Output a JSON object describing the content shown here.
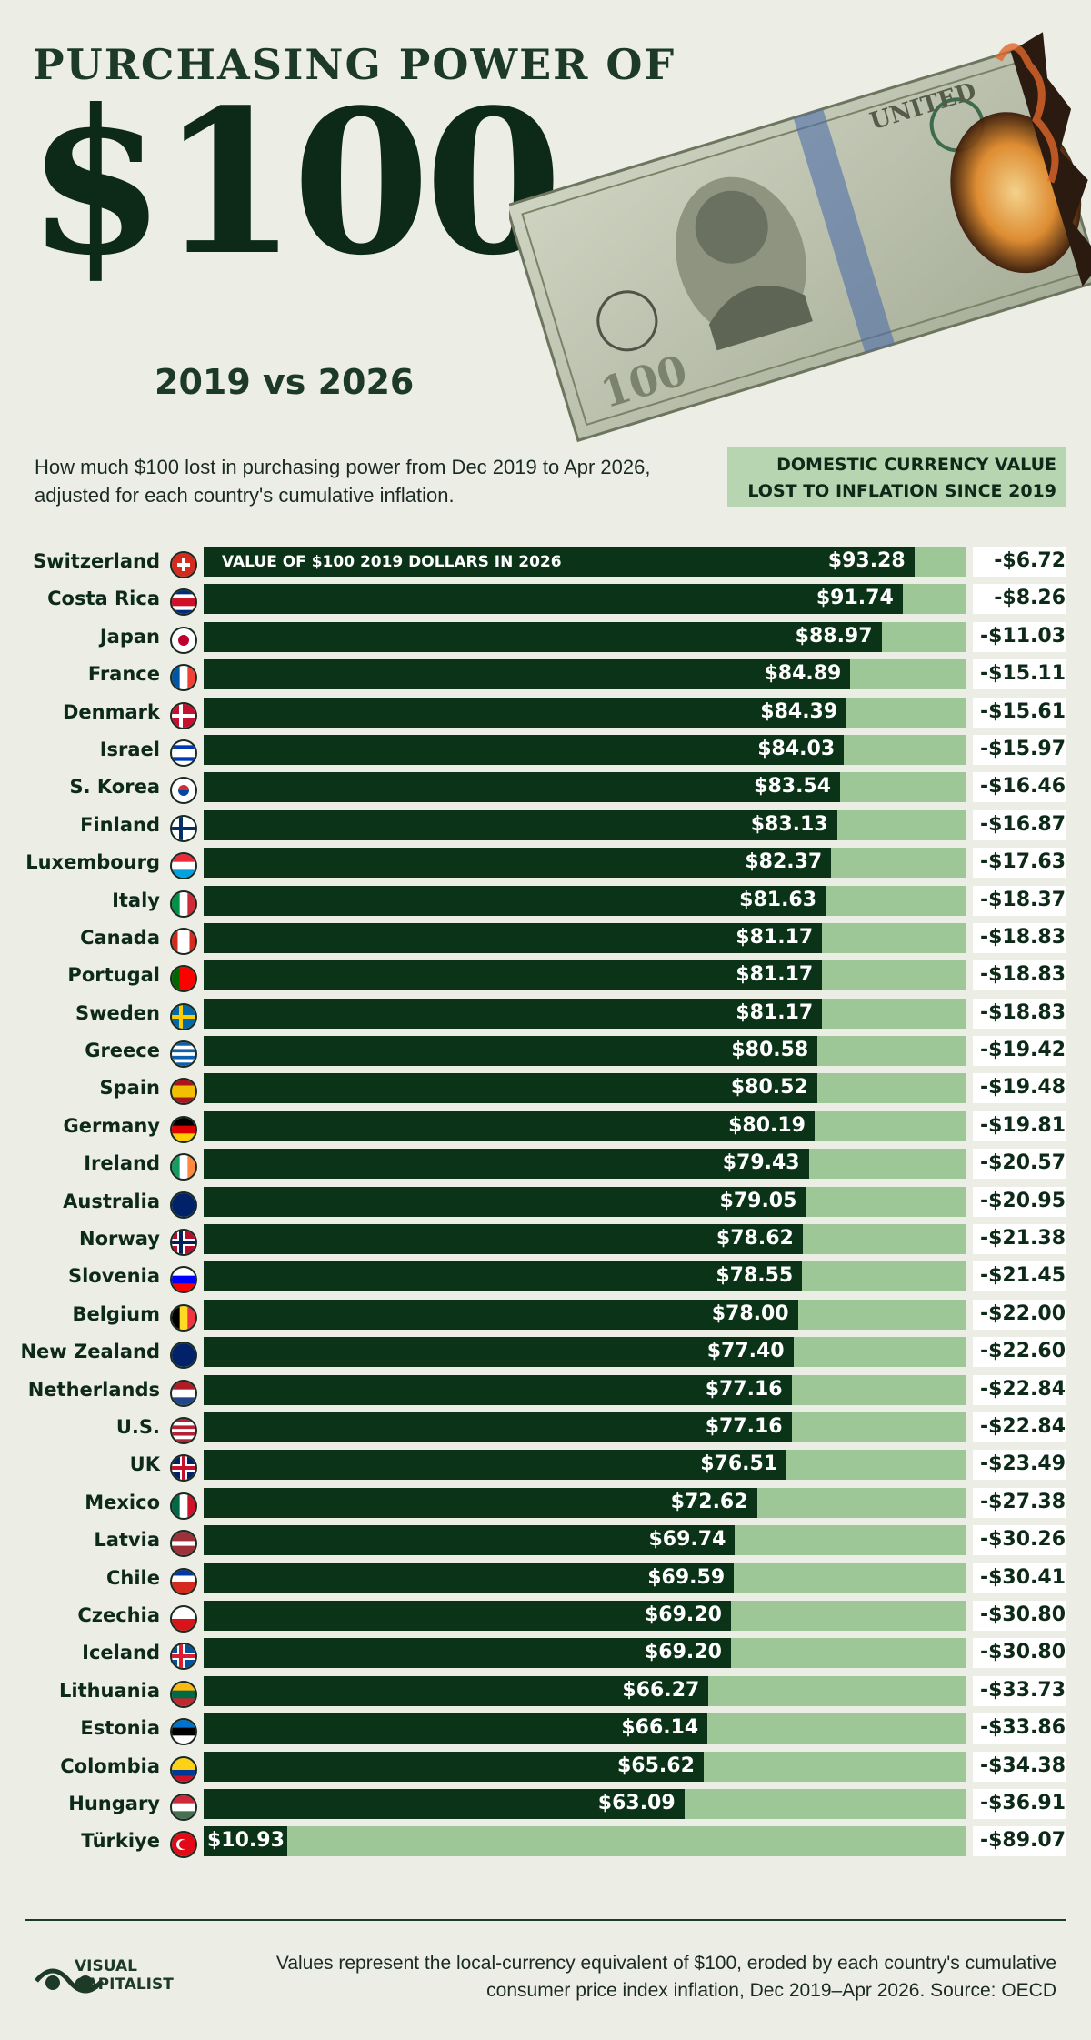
{
  "header": {
    "title_top": "Purchasing Power of",
    "title_big": "$100",
    "subtitle": "2019 vs 2026",
    "intro": "How much $100 lost in purchasing power from Dec 2019 to Apr 2026, adjusted for each country's cumulative inflation.",
    "right_header": "Domestic currency value lost to inflation since 2019",
    "bar_label": "Value of $100 2019 dollars in 2026"
  },
  "chart_data": {
    "type": "bar",
    "orientation": "horizontal",
    "xlim": [
      0,
      100
    ],
    "colors": {
      "value": "#0a3317",
      "remaining": "#9ec798",
      "loss_box": "#ffffff"
    },
    "rows": [
      {
        "country": "Switzerland",
        "flag": "switzerland-flag-icon",
        "value": 93.28,
        "value_label": "$93.28",
        "loss": "-$6.72"
      },
      {
        "country": "Costa Rica",
        "flag": "costa-rica-flag-icon",
        "value": 91.74,
        "value_label": "$91.74",
        "loss": "-$8.26"
      },
      {
        "country": "Japan",
        "flag": "japan-flag-icon",
        "value": 88.97,
        "value_label": "$88.97",
        "loss": "-$11.03"
      },
      {
        "country": "France",
        "flag": "france-flag-icon",
        "value": 84.89,
        "value_label": "$84.89",
        "loss": "-$15.11"
      },
      {
        "country": "Denmark",
        "flag": "denmark-flag-icon",
        "value": 84.39,
        "value_label": "$84.39",
        "loss": "-$15.61"
      },
      {
        "country": "Israel",
        "flag": "israel-flag-icon",
        "value": 84.03,
        "value_label": "$84.03",
        "loss": "-$15.97"
      },
      {
        "country": "S. Korea",
        "flag": "south-korea-flag-icon",
        "value": 83.54,
        "value_label": "$83.54",
        "loss": "-$16.46"
      },
      {
        "country": "Finland",
        "flag": "finland-flag-icon",
        "value": 83.13,
        "value_label": "$83.13",
        "loss": "-$16.87"
      },
      {
        "country": "Luxembourg",
        "flag": "luxembourg-flag-icon",
        "value": 82.37,
        "value_label": "$82.37",
        "loss": "-$17.63"
      },
      {
        "country": "Italy",
        "flag": "italy-flag-icon",
        "value": 81.63,
        "value_label": "$81.63",
        "loss": "-$18.37"
      },
      {
        "country": "Canada",
        "flag": "canada-flag-icon",
        "value": 81.17,
        "value_label": "$81.17",
        "loss": "-$18.83"
      },
      {
        "country": "Portugal",
        "flag": "portugal-flag-icon",
        "value": 81.17,
        "value_label": "$81.17",
        "loss": "-$18.83"
      },
      {
        "country": "Sweden",
        "flag": "sweden-flag-icon",
        "value": 81.17,
        "value_label": "$81.17",
        "loss": "-$18.83"
      },
      {
        "country": "Greece",
        "flag": "greece-flag-icon",
        "value": 80.58,
        "value_label": "$80.58",
        "loss": "-$19.42"
      },
      {
        "country": "Spain",
        "flag": "spain-flag-icon",
        "value": 80.52,
        "value_label": "$80.52",
        "loss": "-$19.48"
      },
      {
        "country": "Germany",
        "flag": "germany-flag-icon",
        "value": 80.19,
        "value_label": "$80.19",
        "loss": "-$19.81"
      },
      {
        "country": "Ireland",
        "flag": "ireland-flag-icon",
        "value": 79.43,
        "value_label": "$79.43",
        "loss": "-$20.57"
      },
      {
        "country": "Australia",
        "flag": "australia-flag-icon",
        "value": 79.05,
        "value_label": "$79.05",
        "loss": "-$20.95"
      },
      {
        "country": "Norway",
        "flag": "norway-flag-icon",
        "value": 78.62,
        "value_label": "$78.62",
        "loss": "-$21.38"
      },
      {
        "country": "Slovenia",
        "flag": "slovenia-flag-icon",
        "value": 78.55,
        "value_label": "$78.55",
        "loss": "-$21.45"
      },
      {
        "country": "Belgium",
        "flag": "belgium-flag-icon",
        "value": 78.0,
        "value_label": "$78.00",
        "loss": "-$22.00"
      },
      {
        "country": "New Zealand",
        "flag": "new-zealand-flag-icon",
        "value": 77.4,
        "value_label": "$77.40",
        "loss": "-$22.60"
      },
      {
        "country": "Netherlands",
        "flag": "netherlands-flag-icon",
        "value": 77.16,
        "value_label": "$77.16",
        "loss": "-$22.84"
      },
      {
        "country": "U.S.",
        "flag": "us-flag-icon",
        "value": 77.16,
        "value_label": "$77.16",
        "loss": "-$22.84"
      },
      {
        "country": "UK",
        "flag": "uk-flag-icon",
        "value": 76.51,
        "value_label": "$76.51",
        "loss": "-$23.49"
      },
      {
        "country": "Mexico",
        "flag": "mexico-flag-icon",
        "value": 72.62,
        "value_label": "$72.62",
        "loss": "-$27.38"
      },
      {
        "country": "Latvia",
        "flag": "latvia-flag-icon",
        "value": 69.74,
        "value_label": "$69.74",
        "loss": "-$30.26"
      },
      {
        "country": "Chile",
        "flag": "chile-flag-icon",
        "value": 69.59,
        "value_label": "$69.59",
        "loss": "-$30.41"
      },
      {
        "country": "Czechia",
        "flag": "czechia-flag-icon",
        "value": 69.2,
        "value_label": "$69.20",
        "loss": "-$30.80"
      },
      {
        "country": "Iceland",
        "flag": "iceland-flag-icon",
        "value": 69.2,
        "value_label": "$69.20",
        "loss": "-$30.80"
      },
      {
        "country": "Lithuania",
        "flag": "lithuania-flag-icon",
        "value": 66.27,
        "value_label": "$66.27",
        "loss": "-$33.73"
      },
      {
        "country": "Estonia",
        "flag": "estonia-flag-icon",
        "value": 66.14,
        "value_label": "$66.14",
        "loss": "-$33.86"
      },
      {
        "country": "Colombia",
        "flag": "colombia-flag-icon",
        "value": 65.62,
        "value_label": "$65.62",
        "loss": "-$34.38"
      },
      {
        "country": "Hungary",
        "flag": "hungary-flag-icon",
        "value": 63.09,
        "value_label": "$63.09",
        "loss": "-$36.91"
      },
      {
        "country": "Türkiye",
        "flag": "turkiye-flag-icon",
        "value": 10.93,
        "value_label": "$10.93",
        "loss": "-$89.07"
      }
    ]
  },
  "footer": {
    "logo_line1": "VISUAL",
    "logo_line2": "CAPITALIST",
    "note": "Values represent the local-currency equivalent of $100, eroded by each country's cumulative consumer price index inflation, Dec 2019–Apr 2026. Source: OECD"
  }
}
